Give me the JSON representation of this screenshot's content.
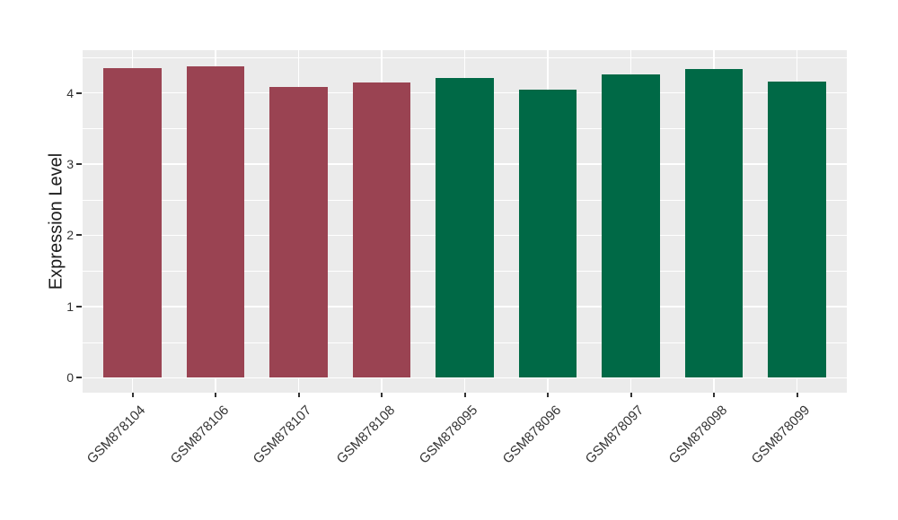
{
  "chart_data": {
    "type": "bar",
    "title": "",
    "xlabel": "",
    "ylabel": "Expression Level",
    "categories": [
      "GSM878104",
      "GSM878106",
      "GSM878107",
      "GSM878108",
      "GSM878095",
      "GSM878096",
      "GSM878097",
      "GSM878098",
      "GSM878099"
    ],
    "values": [
      4.35,
      4.37,
      4.08,
      4.15,
      4.21,
      4.05,
      4.26,
      4.33,
      4.16
    ],
    "bar_colors": [
      "#9A4352",
      "#9A4352",
      "#9A4352",
      "#9A4352",
      "#006946",
      "#006946",
      "#006946",
      "#006946",
      "#006946"
    ],
    "group_colors": {
      "maroon_group": "#9A4352",
      "green_group": "#006946"
    },
    "yticks": [
      0,
      1,
      2,
      3,
      4
    ],
    "minor_yticks": [
      0.5,
      1.5,
      2.5,
      3.5,
      4.5
    ],
    "ylim": [
      -0.21,
      4.6
    ],
    "x_label_rotation_deg": 45,
    "grid": "on",
    "legend_position": "none",
    "panel_bg": "#EBEBEB",
    "grid_color": "#FFFFFF",
    "tick_color": "#333333",
    "axis_text_color": "#333333",
    "bar_width_fraction": 0.7
  }
}
